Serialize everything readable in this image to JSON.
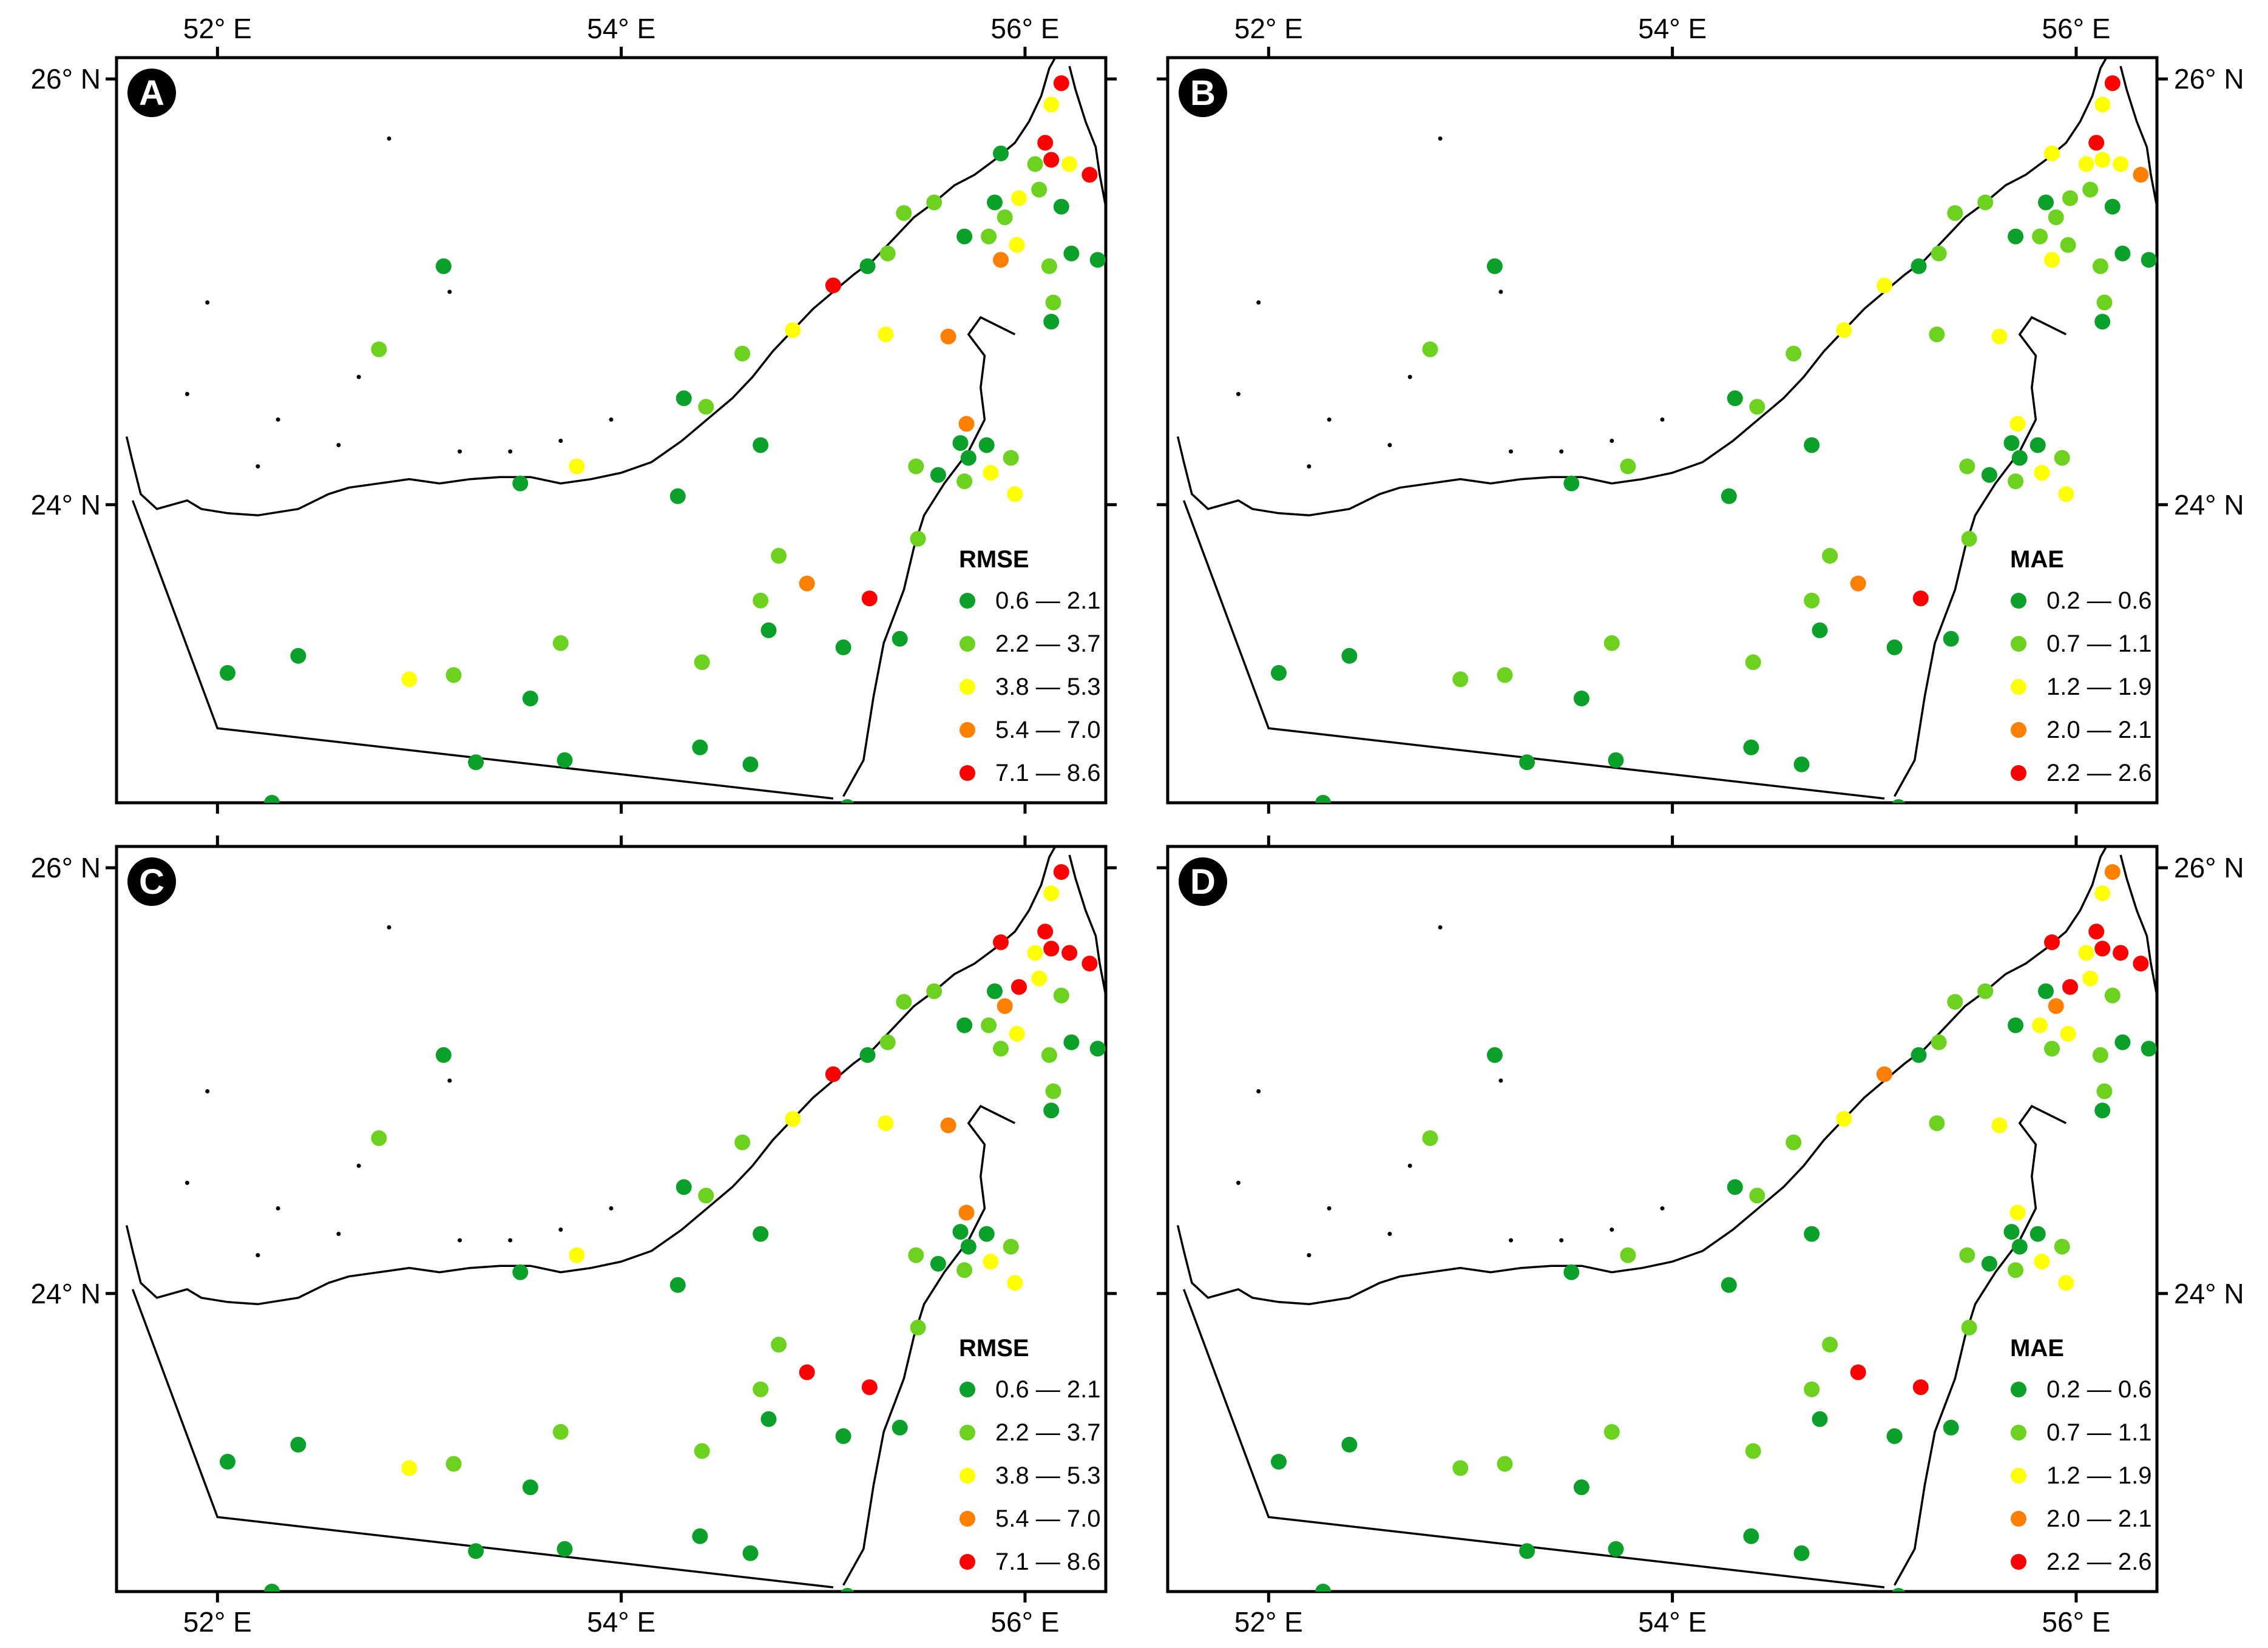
{
  "colors": {
    "c1": "#0AA02A",
    "c2": "#6CD11F",
    "c3": "#FFFF00",
    "c4": "#FF7F00",
    "c5": "#FF0000"
  },
  "axes": {
    "lon_labels": [
      "52° E",
      "54° E",
      "56° E"
    ],
    "lat_labels": [
      "26° N",
      "24° N"
    ]
  },
  "panels": [
    {
      "id": "A",
      "letter": "A",
      "legend_title": "RMSE",
      "classes": [
        "0.6 — 2.1",
        "2.2 — 3.7",
        "3.8 — 5.3",
        "5.4 — 7.0",
        "7.1 — 8.6"
      ],
      "stations": [
        5,
        3,
        5,
        2,
        1,
        5,
        3,
        5,
        3,
        2,
        1,
        1,
        2,
        2,
        3,
        4,
        2,
        1,
        2,
        1,
        1,
        1,
        2,
        2,
        2,
        1,
        5,
        3,
        2,
        2,
        1,
        3,
        1,
        3,
        4,
        4,
        2,
        2,
        1,
        1,
        1,
        1,
        3,
        3,
        2,
        2,
        1,
        5,
        4,
        2,
        2,
        1,
        1,
        2,
        1,
        2,
        2,
        3,
        1,
        1,
        1,
        1,
        1,
        1,
        1,
        1,
        1,
        2,
        1,
        1
      ]
    },
    {
      "id": "B",
      "letter": "B",
      "legend_title": "MAE",
      "classes": [
        "0.2 — 0.6",
        "0.7 — 1.1",
        "1.2 — 1.9",
        "2.0 — 2.1",
        "2.2 — 2.6"
      ],
      "stations": [
        5,
        3,
        5,
        3,
        3,
        3,
        3,
        4,
        2,
        2,
        1,
        1,
        2,
        2,
        2,
        3,
        2,
        1,
        2,
        1,
        1,
        1,
        2,
        2,
        2,
        1,
        3,
        3,
        2,
        2,
        1,
        2,
        1,
        2,
        3,
        3,
        2,
        2,
        1,
        1,
        1,
        1,
        3,
        3,
        2,
        2,
        1,
        5,
        4,
        2,
        2,
        1,
        1,
        2,
        1,
        2,
        2,
        2,
        1,
        1,
        1,
        1,
        1,
        1,
        1,
        1,
        1,
        2,
        1,
        1
      ]
    },
    {
      "id": "C",
      "letter": "C",
      "legend_title": "RMSE",
      "classes": [
        "0.6 — 2.1",
        "2.2 — 3.7",
        "3.8 — 5.3",
        "5.4 — 7.0",
        "7.1 — 8.6"
      ],
      "stations": [
        5,
        3,
        5,
        3,
        5,
        5,
        5,
        5,
        5,
        3,
        2,
        1,
        4,
        2,
        3,
        2,
        2,
        1,
        2,
        1,
        1,
        1,
        2,
        2,
        2,
        1,
        5,
        3,
        2,
        2,
        1,
        3,
        1,
        3,
        4,
        4,
        2,
        2,
        1,
        1,
        1,
        1,
        3,
        3,
        2,
        2,
        1,
        5,
        5,
        2,
        2,
        1,
        1,
        2,
        1,
        2,
        2,
        3,
        1,
        1,
        1,
        1,
        1,
        1,
        1,
        1,
        1,
        2,
        1,
        1
      ]
    },
    {
      "id": "D",
      "letter": "D",
      "legend_title": "MAE",
      "classes": [
        "0.2 — 0.6",
        "0.7 — 1.1",
        "1.2 — 1.9",
        "2.0 — 2.1",
        "2.2 — 2.6"
      ],
      "stations": [
        4,
        3,
        5,
        3,
        5,
        5,
        5,
        5,
        5,
        3,
        2,
        1,
        4,
        3,
        3,
        2,
        2,
        1,
        2,
        1,
        1,
        1,
        2,
        2,
        2,
        1,
        4,
        3,
        2,
        2,
        1,
        2,
        1,
        2,
        3,
        3,
        2,
        2,
        1,
        1,
        1,
        1,
        3,
        3,
        2,
        2,
        1,
        5,
        5,
        2,
        2,
        1,
        1,
        2,
        1,
        2,
        2,
        2,
        1,
        1,
        1,
        1,
        1,
        1,
        1,
        1,
        1,
        2,
        1,
        1
      ]
    }
  ],
  "chart_data": {
    "type": "scatter",
    "description_units": "station positions in degrees longitude/latitude",
    "lon_range": [
      51.5,
      56.4
    ],
    "lat_range": [
      22.6,
      26.1
    ],
    "stations_lonlat": [
      [
        56.18,
        25.98
      ],
      [
        56.13,
        25.88
      ],
      [
        56.1,
        25.7
      ],
      [
        56.05,
        25.6
      ],
      [
        55.88,
        25.65
      ],
      [
        56.13,
        25.62
      ],
      [
        56.22,
        25.6
      ],
      [
        56.32,
        25.55
      ],
      [
        55.97,
        25.44
      ],
      [
        56.07,
        25.48
      ],
      [
        56.18,
        25.4
      ],
      [
        55.85,
        25.42
      ],
      [
        55.9,
        25.35
      ],
      [
        55.82,
        25.26
      ],
      [
        55.96,
        25.22
      ],
      [
        55.88,
        25.15
      ],
      [
        56.12,
        25.12
      ],
      [
        56.23,
        25.18
      ],
      [
        56.14,
        24.95
      ],
      [
        56.36,
        25.15
      ],
      [
        56.13,
        24.86
      ],
      [
        55.7,
        25.26
      ],
      [
        55.55,
        25.42
      ],
      [
        55.4,
        25.37
      ],
      [
        55.32,
        25.18
      ],
      [
        55.22,
        25.12
      ],
      [
        55.05,
        25.03
      ],
      [
        54.85,
        24.82
      ],
      [
        54.6,
        24.71
      ],
      [
        54.42,
        24.46
      ],
      [
        54.31,
        24.5
      ],
      [
        53.78,
        24.18
      ],
      [
        54.69,
        24.28
      ],
      [
        55.31,
        24.8
      ],
      [
        55.62,
        24.79
      ],
      [
        55.71,
        24.38
      ],
      [
        55.93,
        24.22
      ],
      [
        55.46,
        24.18
      ],
      [
        55.57,
        24.14
      ],
      [
        55.68,
        24.29
      ],
      [
        55.72,
        24.22
      ],
      [
        55.81,
        24.28
      ],
      [
        55.83,
        24.15
      ],
      [
        55.95,
        24.05
      ],
      [
        55.7,
        24.11
      ],
      [
        55.47,
        23.84
      ],
      [
        55.38,
        23.37
      ],
      [
        55.23,
        23.56
      ],
      [
        54.92,
        23.63
      ],
      [
        54.78,
        23.76
      ],
      [
        54.69,
        23.55
      ],
      [
        54.73,
        23.41
      ],
      [
        55.1,
        23.33
      ],
      [
        54.4,
        23.26
      ],
      [
        53.55,
        23.09
      ],
      [
        53.7,
        23.35
      ],
      [
        53.17,
        23.2
      ],
      [
        52.95,
        23.18
      ],
      [
        52.4,
        23.29
      ],
      [
        52.05,
        23.21
      ],
      [
        53.28,
        22.79
      ],
      [
        53.72,
        22.8
      ],
      [
        54.39,
        22.86
      ],
      [
        54.64,
        22.78
      ],
      [
        55.12,
        22.58
      ],
      [
        52.27,
        22.6
      ],
      [
        53.12,
        25.12
      ],
      [
        52.8,
        24.73
      ],
      [
        53.5,
        24.1
      ],
      [
        54.28,
        24.04
      ]
    ]
  }
}
